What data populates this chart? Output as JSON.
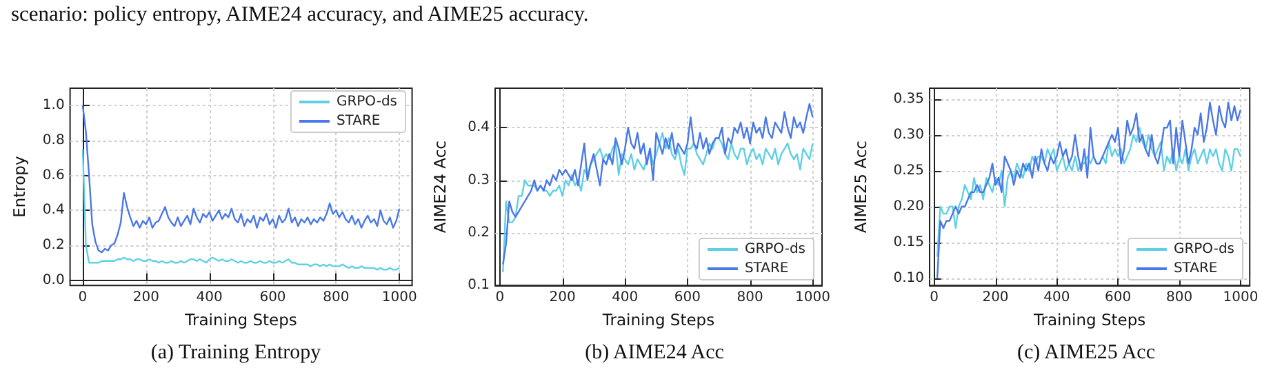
{
  "chart_data": [
    {
      "type": "line",
      "title": "(a) Training Entropy",
      "annotations": [
        "scenario: policy entropy, AIME24 accuracy, and AIME25 accuracy."
      ],
      "xlabel": "Training Steps",
      "ylabel": "Entropy",
      "x": [
        0,
        10,
        20,
        30,
        40,
        50,
        60,
        70,
        80,
        90,
        100,
        110,
        120,
        130,
        140,
        150,
        160,
        170,
        180,
        190,
        200,
        210,
        220,
        230,
        240,
        250,
        260,
        270,
        280,
        290,
        300,
        310,
        320,
        330,
        340,
        350,
        360,
        370,
        380,
        390,
        400,
        410,
        420,
        430,
        440,
        450,
        460,
        470,
        480,
        490,
        500,
        510,
        520,
        530,
        540,
        550,
        560,
        570,
        580,
        590,
        600,
        610,
        620,
        630,
        640,
        650,
        660,
        670,
        680,
        690,
        700,
        710,
        720,
        730,
        740,
        750,
        760,
        770,
        780,
        790,
        800,
        810,
        820,
        830,
        840,
        850,
        860,
        870,
        880,
        890,
        900,
        910,
        920,
        930,
        940,
        950,
        960,
        970,
        980,
        990,
        1000
      ],
      "series": [
        {
          "name": "GRPO-ds",
          "color": "#5fd0e4",
          "values": [
            0.75,
            0.2,
            0.1,
            0.1,
            0.1,
            0.1,
            0.11,
            0.11,
            0.11,
            0.11,
            0.11,
            0.12,
            0.12,
            0.13,
            0.12,
            0.12,
            0.11,
            0.12,
            0.12,
            0.11,
            0.11,
            0.12,
            0.11,
            0.11,
            0.1,
            0.11,
            0.1,
            0.1,
            0.11,
            0.1,
            0.1,
            0.11,
            0.1,
            0.11,
            0.12,
            0.12,
            0.11,
            0.12,
            0.11,
            0.1,
            0.12,
            0.13,
            0.12,
            0.11,
            0.12,
            0.11,
            0.11,
            0.12,
            0.11,
            0.1,
            0.11,
            0.1,
            0.1,
            0.11,
            0.1,
            0.1,
            0.11,
            0.1,
            0.1,
            0.11,
            0.1,
            0.1,
            0.11,
            0.1,
            0.11,
            0.12,
            0.1,
            0.1,
            0.09,
            0.09,
            0.09,
            0.09,
            0.08,
            0.09,
            0.09,
            0.08,
            0.09,
            0.08,
            0.09,
            0.08,
            0.08,
            0.08,
            0.09,
            0.08,
            0.07,
            0.08,
            0.07,
            0.07,
            0.08,
            0.07,
            0.07,
            0.07,
            0.07,
            0.06,
            0.07,
            0.06,
            0.06,
            0.07,
            0.06,
            0.06,
            0.07
          ]
        },
        {
          "name": "STARE",
          "color": "#4a78e8",
          "values": [
            1.0,
            0.85,
            0.6,
            0.32,
            0.22,
            0.17,
            0.16,
            0.18,
            0.17,
            0.2,
            0.21,
            0.26,
            0.33,
            0.5,
            0.42,
            0.36,
            0.31,
            0.34,
            0.3,
            0.34,
            0.32,
            0.36,
            0.3,
            0.33,
            0.34,
            0.38,
            0.42,
            0.36,
            0.33,
            0.31,
            0.36,
            0.31,
            0.34,
            0.37,
            0.32,
            0.41,
            0.36,
            0.33,
            0.38,
            0.36,
            0.39,
            0.34,
            0.37,
            0.4,
            0.35,
            0.38,
            0.36,
            0.41,
            0.35,
            0.33,
            0.38,
            0.31,
            0.35,
            0.33,
            0.37,
            0.3,
            0.36,
            0.34,
            0.38,
            0.32,
            0.35,
            0.3,
            0.37,
            0.33,
            0.35,
            0.41,
            0.33,
            0.36,
            0.31,
            0.35,
            0.33,
            0.36,
            0.32,
            0.35,
            0.33,
            0.36,
            0.34,
            0.38,
            0.44,
            0.38,
            0.4,
            0.36,
            0.39,
            0.35,
            0.33,
            0.37,
            0.32,
            0.35,
            0.3,
            0.34,
            0.37,
            0.33,
            0.35,
            0.31,
            0.4,
            0.34,
            0.32,
            0.36,
            0.3,
            0.34,
            0.41
          ]
        }
      ],
      "xlim": [
        -40,
        1040
      ],
      "xticks": [
        0,
        200,
        400,
        600,
        800,
        1000
      ],
      "ylim": [
        -0.03,
        1.1
      ],
      "yticks": [
        {
          "value": 0,
          "label": "0.0"
        },
        0.2,
        0.4,
        0.6,
        0.8,
        {
          "value": 1,
          "label": "1.0"
        }
      ],
      "grid": true,
      "legend": "top right"
    },
    {
      "type": "line",
      "title": "(b) AIME24 Acc",
      "xlabel": "Training Steps",
      "ylabel": "AIME24 Acc",
      "x": [
        10,
        20,
        30,
        40,
        50,
        60,
        70,
        80,
        90,
        100,
        110,
        120,
        130,
        140,
        150,
        160,
        170,
        180,
        190,
        200,
        210,
        220,
        230,
        240,
        250,
        260,
        270,
        280,
        290,
        300,
        310,
        320,
        330,
        340,
        350,
        360,
        370,
        380,
        390,
        400,
        410,
        420,
        430,
        440,
        450,
        460,
        470,
        480,
        490,
        500,
        510,
        520,
        530,
        540,
        550,
        560,
        570,
        580,
        590,
        600,
        610,
        620,
        630,
        640,
        650,
        660,
        670,
        680,
        690,
        700,
        710,
        720,
        730,
        740,
        750,
        760,
        770,
        780,
        790,
        800,
        810,
        820,
        830,
        840,
        850,
        860,
        870,
        880,
        890,
        900,
        910,
        920,
        930,
        940,
        950,
        960,
        970,
        980,
        990,
        1000
      ],
      "series": [
        {
          "name": "GRPO-ds",
          "color": "#5fd0e4",
          "values": [
            0.125,
            0.26,
            0.22,
            0.22,
            0.23,
            0.27,
            0.27,
            0.3,
            0.29,
            0.29,
            0.29,
            0.28,
            0.29,
            0.28,
            0.28,
            0.27,
            0.28,
            0.28,
            0.29,
            0.27,
            0.3,
            0.29,
            0.31,
            0.29,
            0.3,
            0.28,
            0.32,
            0.31,
            0.33,
            0.34,
            0.35,
            0.36,
            0.34,
            0.35,
            0.34,
            0.36,
            0.37,
            0.31,
            0.35,
            0.34,
            0.33,
            0.35,
            0.32,
            0.34,
            0.33,
            0.32,
            0.34,
            0.36,
            0.33,
            0.35,
            0.37,
            0.39,
            0.36,
            0.38,
            0.35,
            0.34,
            0.36,
            0.33,
            0.31,
            0.36,
            0.36,
            0.37,
            0.35,
            0.34,
            0.33,
            0.35,
            0.37,
            0.36,
            0.38,
            0.38,
            0.37,
            0.35,
            0.34,
            0.37,
            0.35,
            0.34,
            0.36,
            0.36,
            0.33,
            0.35,
            0.36,
            0.34,
            0.35,
            0.33,
            0.36,
            0.35,
            0.34,
            0.36,
            0.33,
            0.35,
            0.36,
            0.37,
            0.35,
            0.34,
            0.35,
            0.32,
            0.36,
            0.35,
            0.34,
            0.37
          ]
        },
        {
          "name": "STARE",
          "color": "#4a78e8",
          "values": [
            0.14,
            0.18,
            0.26,
            0.24,
            0.23,
            0.24,
            0.25,
            0.26,
            0.27,
            0.28,
            0.3,
            0.28,
            0.29,
            0.28,
            0.3,
            0.29,
            0.31,
            0.3,
            0.32,
            0.31,
            0.32,
            0.31,
            0.3,
            0.32,
            0.29,
            0.33,
            0.37,
            0.3,
            0.33,
            0.35,
            0.32,
            0.29,
            0.34,
            0.33,
            0.35,
            0.33,
            0.38,
            0.36,
            0.33,
            0.36,
            0.4,
            0.37,
            0.36,
            0.39,
            0.35,
            0.37,
            0.33,
            0.36,
            0.3,
            0.39,
            0.37,
            0.35,
            0.38,
            0.36,
            0.39,
            0.35,
            0.37,
            0.36,
            0.35,
            0.37,
            0.42,
            0.37,
            0.36,
            0.39,
            0.36,
            0.38,
            0.35,
            0.37,
            0.38,
            0.38,
            0.4,
            0.35,
            0.38,
            0.37,
            0.4,
            0.39,
            0.41,
            0.38,
            0.4,
            0.37,
            0.41,
            0.39,
            0.4,
            0.38,
            0.42,
            0.39,
            0.38,
            0.41,
            0.4,
            0.39,
            0.43,
            0.4,
            0.38,
            0.42,
            0.4,
            0.41,
            0.39,
            0.42,
            0.445,
            0.42
          ]
        }
      ],
      "xlim": [
        -15,
        1030
      ],
      "xticks": [
        0,
        200,
        400,
        600,
        800,
        1000
      ],
      "ylim": [
        0.1,
        0.475
      ],
      "yticks": [
        0.1,
        0.2,
        0.3,
        0.4
      ],
      "grid": true,
      "legend": "bottom right"
    },
    {
      "type": "line",
      "title": "(c) AIME25 Acc",
      "xlabel": "Training Steps",
      "ylabel": "AIME25 Acc",
      "x": [
        10,
        20,
        30,
        40,
        50,
        60,
        70,
        80,
        90,
        100,
        110,
        120,
        130,
        140,
        150,
        160,
        170,
        180,
        190,
        200,
        210,
        220,
        230,
        240,
        250,
        260,
        270,
        280,
        290,
        300,
        310,
        320,
        330,
        340,
        350,
        360,
        370,
        380,
        390,
        400,
        410,
        420,
        430,
        440,
        450,
        460,
        470,
        480,
        490,
        500,
        510,
        520,
        530,
        540,
        550,
        560,
        570,
        580,
        590,
        600,
        610,
        620,
        630,
        640,
        650,
        660,
        670,
        680,
        690,
        700,
        710,
        720,
        730,
        740,
        750,
        760,
        770,
        780,
        790,
        800,
        810,
        820,
        830,
        840,
        850,
        860,
        870,
        880,
        890,
        900,
        910,
        920,
        930,
        940,
        950,
        960,
        970,
        980,
        990,
        1000
      ],
      "series": [
        {
          "name": "GRPO-ds",
          "color": "#5fd0e4",
          "values": [
            0.13,
            0.2,
            0.19,
            0.19,
            0.2,
            0.2,
            0.17,
            0.2,
            0.21,
            0.23,
            0.22,
            0.21,
            0.24,
            0.22,
            0.23,
            0.21,
            0.24,
            0.23,
            0.22,
            0.24,
            0.23,
            0.25,
            0.2,
            0.24,
            0.25,
            0.24,
            0.26,
            0.25,
            0.24,
            0.26,
            0.25,
            0.27,
            0.26,
            0.27,
            0.27,
            0.26,
            0.28,
            0.27,
            0.28,
            0.25,
            0.26,
            0.27,
            0.25,
            0.26,
            0.25,
            0.27,
            0.25,
            0.26,
            0.26,
            0.27,
            0.26,
            0.27,
            0.26,
            0.26,
            0.27,
            0.26,
            0.29,
            0.27,
            0.28,
            0.27,
            0.28,
            0.26,
            0.27,
            0.28,
            0.3,
            0.29,
            0.31,
            0.29,
            0.28,
            0.3,
            0.28,
            0.27,
            0.28,
            0.29,
            0.25,
            0.27,
            0.26,
            0.28,
            0.25,
            0.27,
            0.26,
            0.28,
            0.25,
            0.27,
            0.28,
            0.26,
            0.27,
            0.28,
            0.26,
            0.28,
            0.27,
            0.28,
            0.26,
            0.25,
            0.28,
            0.27,
            0.25,
            0.28,
            0.28,
            0.27
          ]
        },
        {
          "name": "STARE",
          "color": "#4a78e8",
          "values": [
            0.1,
            0.18,
            0.17,
            0.18,
            0.18,
            0.19,
            0.2,
            0.19,
            0.2,
            0.2,
            0.21,
            0.22,
            0.22,
            0.23,
            0.22,
            0.22,
            0.23,
            0.24,
            0.26,
            0.23,
            0.24,
            0.22,
            0.27,
            0.26,
            0.25,
            0.23,
            0.25,
            0.24,
            0.26,
            0.25,
            0.26,
            0.24,
            0.27,
            0.25,
            0.28,
            0.26,
            0.25,
            0.27,
            0.26,
            0.27,
            0.29,
            0.27,
            0.28,
            0.26,
            0.27,
            0.3,
            0.27,
            0.25,
            0.28,
            0.24,
            0.31,
            0.27,
            0.26,
            0.26,
            0.27,
            0.28,
            0.29,
            0.3,
            0.29,
            0.31,
            0.26,
            0.28,
            0.32,
            0.3,
            0.31,
            0.33,
            0.29,
            0.3,
            0.28,
            0.27,
            0.3,
            0.27,
            0.26,
            0.28,
            0.31,
            0.31,
            0.32,
            0.26,
            0.31,
            0.27,
            0.32,
            0.29,
            0.26,
            0.28,
            0.31,
            0.3,
            0.33,
            0.29,
            0.31,
            0.345,
            0.32,
            0.3,
            0.34,
            0.32,
            0.31,
            0.345,
            0.32,
            0.34,
            0.32,
            0.335
          ]
        }
      ],
      "xlim": [
        -15,
        1030
      ],
      "xticks": [
        0,
        200,
        400,
        600,
        800,
        1000
      ],
      "ylim": [
        0.09,
        0.365
      ],
      "yticks": [
        {
          "value": 0.1,
          "label": "0.10"
        },
        {
          "value": 0.15,
          "label": "0.15"
        },
        {
          "value": 0.2,
          "label": "0.20"
        },
        {
          "value": 0.25,
          "label": "0.25"
        },
        {
          "value": 0.3,
          "label": "0.30"
        },
        {
          "value": 0.35,
          "label": "0.35"
        }
      ],
      "grid": true,
      "legend": "bottom right"
    }
  ]
}
